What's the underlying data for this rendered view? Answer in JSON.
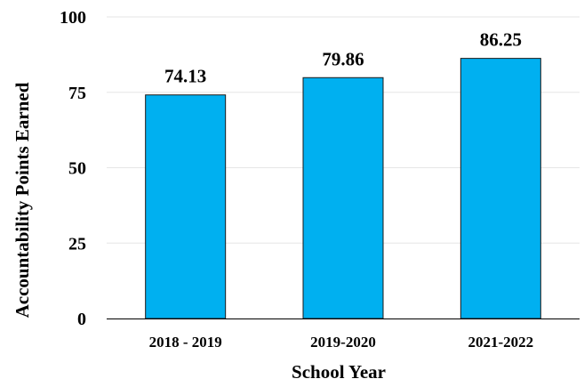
{
  "chart_data": {
    "type": "bar",
    "categories": [
      "2018 - 2019",
      "2019-2020",
      "2021-2022"
    ],
    "values": [
      74.13,
      79.86,
      86.25
    ],
    "data_labels": [
      "74.13",
      "79.86",
      "86.25"
    ],
    "title": "",
    "xlabel": "School Year",
    "ylabel": "Accountability Points Earned",
    "ylim": [
      0,
      100
    ],
    "yticks": [
      0,
      25,
      50,
      75,
      100
    ],
    "ytick_labels": [
      "0",
      "25",
      "50",
      "75",
      "100"
    ],
    "grid": true,
    "legend": "none",
    "bar_color": "#00B0F0",
    "bar_edge_color": "#1a1a1a",
    "grid_color": "#e6e6e6"
  }
}
